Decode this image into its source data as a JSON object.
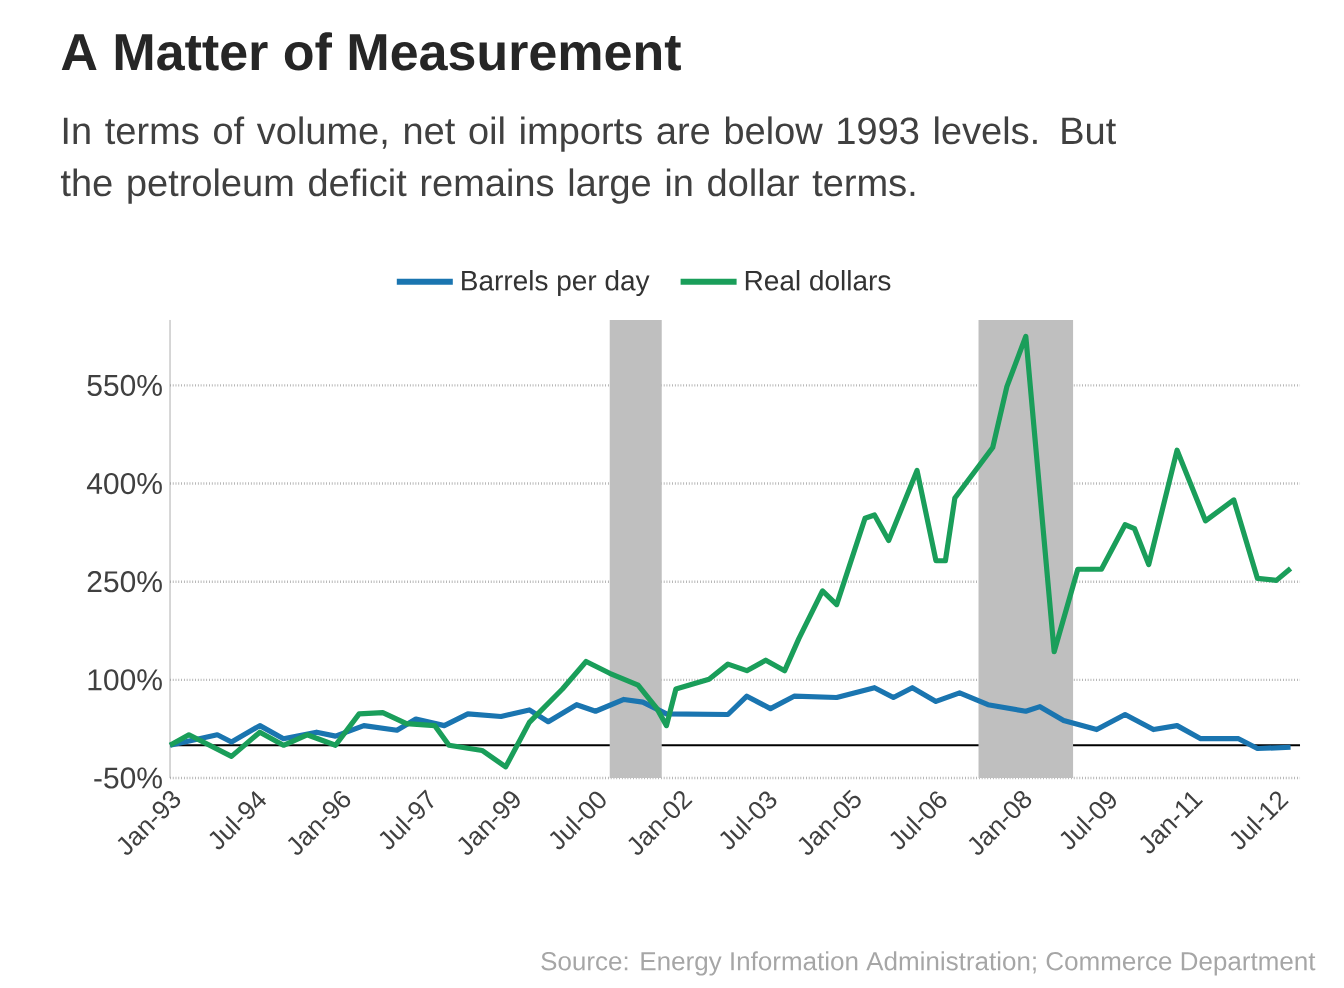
{
  "chart_data": {
    "type": "line",
    "title": "A Matter of Measurement",
    "subtitle": "In terms of volume, net oil imports are below 1993 levels. But the petroleum deficit remains large in dollar terms.",
    "annotations": [
      "Source: Energy Information Administration; Commerce Department"
    ],
    "legend": "top",
    "grid": "y",
    "marker": "none",
    "line_style": "solid",
    "xlim": [
      "1993-01",
      "2012-12"
    ],
    "ylim": [
      -50,
      650
    ],
    "xticks": [
      {
        "value": "1993-01",
        "label": "Jan-93"
      },
      {
        "value": "1994-07",
        "label": "Jul-94"
      },
      {
        "value": "1996-01",
        "label": "Jan-96"
      },
      {
        "value": "1997-07",
        "label": "Jul-97"
      },
      {
        "value": "1999-01",
        "label": "Jan-99"
      },
      {
        "value": "2000-07",
        "label": "Jul-00"
      },
      {
        "value": "2002-01",
        "label": "Jan-02"
      },
      {
        "value": "2003-07",
        "label": "Jul-03"
      },
      {
        "value": "2005-01",
        "label": "Jan-05"
      },
      {
        "value": "2006-07",
        "label": "Jul-06"
      },
      {
        "value": "2008-01",
        "label": "Jan-08"
      },
      {
        "value": "2009-07",
        "label": "Jul-09"
      },
      {
        "value": "2011-01",
        "label": "Jan-11"
      },
      {
        "value": "2012-07",
        "label": "Jul-12"
      }
    ],
    "yticks": [
      {
        "value": -50,
        "label": "-50%"
      },
      {
        "value": 100,
        "label": "100%"
      },
      {
        "value": 250,
        "label": "250%"
      },
      {
        "value": 400,
        "label": "400%"
      },
      {
        "value": 550,
        "label": "550%"
      }
    ],
    "bands": [
      {
        "axis": "x",
        "from": "2000-10",
        "to": "2001-09",
        "color": "#bfbfbf"
      },
      {
        "axis": "x",
        "from": "2007-04",
        "to": "2008-12",
        "color": "#bfbfbf"
      }
    ],
    "series": [
      {
        "name": "Barrels per day",
        "color": "#1a75b0",
        "x": [
          "1993-01",
          "1993-11",
          "1994-02",
          "1994-08",
          "1995-01",
          "1995-08",
          "1995-12",
          "1996-06",
          "1997-01",
          "1997-05",
          "1997-11",
          "1998-04",
          "1998-11",
          "1999-05",
          "1999-09",
          "2000-03",
          "2000-07",
          "2001-01",
          "2001-05",
          "2001-10",
          "2002-11",
          "2003-03",
          "2003-08",
          "2004-01",
          "2004-10",
          "2005-06",
          "2005-10",
          "2006-02",
          "2006-07",
          "2006-12",
          "2007-06",
          "2008-02",
          "2008-05",
          "2008-10",
          "2009-05",
          "2009-11",
          "2010-05",
          "2010-10",
          "2011-03",
          "2011-11",
          "2012-03",
          "2012-10"
        ],
        "values": [
          0,
          16,
          5,
          30,
          10,
          20,
          14,
          30,
          23,
          40,
          30,
          48,
          44,
          54,
          36,
          62,
          52,
          70,
          66,
          48,
          47,
          75,
          56,
          75,
          73,
          88,
          73,
          88,
          67,
          80,
          62,
          52,
          59,
          38,
          24,
          47,
          24,
          30,
          10,
          10,
          -5,
          -3
        ]
      },
      {
        "name": "Real dollars",
        "color": "#1a9e5a",
        "x": [
          "1993-01",
          "1993-05",
          "1994-02",
          "1994-08",
          "1995-01",
          "1995-06",
          "1995-12",
          "1996-05",
          "1996-10",
          "1997-03",
          "1997-09",
          "1997-12",
          "1998-07",
          "1998-12",
          "1999-05",
          "1999-12",
          "2000-05",
          "2000-10",
          "2001-04",
          "2001-08",
          "2001-10",
          "2001-12",
          "2002-07",
          "2002-11",
          "2003-03",
          "2003-07",
          "2003-11",
          "2004-02",
          "2004-07",
          "2004-10",
          "2005-04",
          "2005-06",
          "2005-09",
          "2006-03",
          "2006-07",
          "2006-09",
          "2006-11",
          "2007-07",
          "2007-10",
          "2008-02",
          "2008-08",
          "2009-01",
          "2009-06",
          "2009-11",
          "2010-01",
          "2010-04",
          "2010-10",
          "2011-04",
          "2011-10",
          "2012-03",
          "2012-07",
          "2012-10"
        ],
        "values": [
          0,
          16,
          -17,
          20,
          0,
          16,
          0,
          48,
          50,
          33,
          30,
          0,
          -8,
          -33,
          35,
          86,
          128,
          110,
          92,
          56,
          30,
          86,
          101,
          124,
          114,
          130,
          114,
          163,
          236,
          215,
          347,
          352,
          313,
          420,
          282,
          282,
          378,
          455,
          548,
          625,
          143,
          269,
          269,
          337,
          331,
          276,
          451,
          343,
          375,
          255,
          252,
          270
        ]
      }
    ]
  }
}
